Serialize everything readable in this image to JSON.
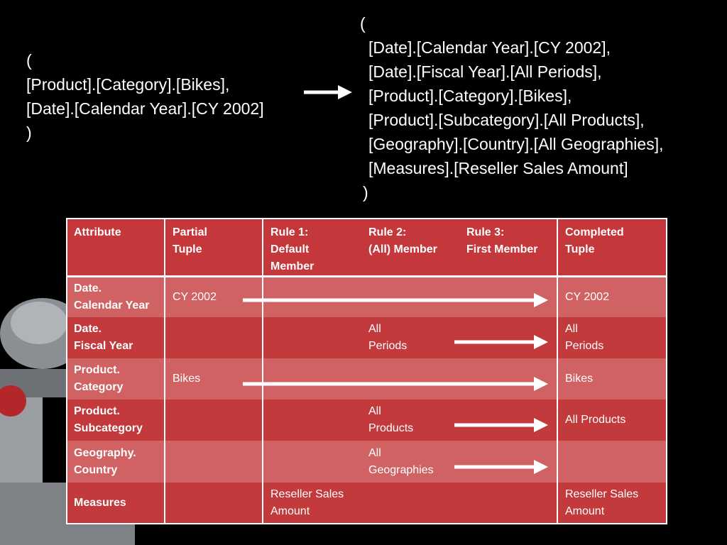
{
  "left_tuple": [
    "(",
    "[Product].[Category].[Bikes],",
    "[Date].[Calendar Year].[CY 2002]",
    ")"
  ],
  "right_tuple": [
    "(",
    "[Date].[Calendar Year].[CY 2002],",
    "[Date].[Fiscal Year].[All Periods],",
    "[Product].[Category].[Bikes],",
    "[Product].[Subcategory].[All Products],",
    "[Geography].[Country].[All Geographies],",
    "[Measures].[Reseller Sales Amount]",
    ")"
  ],
  "table": {
    "header": [
      "Attribute",
      "Partial\nTuple",
      "Rule 1:\nDefault\nMember",
      "Rule 2:\n(All) Member",
      "Rule 3:\nFirst Member",
      "Completed\nTuple"
    ],
    "rows": [
      [
        "Date.\nCalendar Year",
        "CY 2002",
        null,
        null,
        null,
        "CY 2002"
      ],
      [
        "Date.\nFiscal Year",
        null,
        null,
        "All\nPeriods",
        null,
        "All\nPeriods"
      ],
      [
        "Product.\nCategory",
        "Bikes",
        null,
        null,
        null,
        "Bikes"
      ],
      [
        "Product.\nSubcategory",
        null,
        null,
        "All\nProducts",
        null,
        "All Products"
      ],
      [
        "Geography.\nCountry",
        null,
        null,
        "All\nGeographies",
        null,
        null
      ],
      [
        "Measures",
        null,
        "Reseller Sales\nAmount",
        null,
        null,
        "Reseller Sales\nAmount"
      ]
    ]
  }
}
